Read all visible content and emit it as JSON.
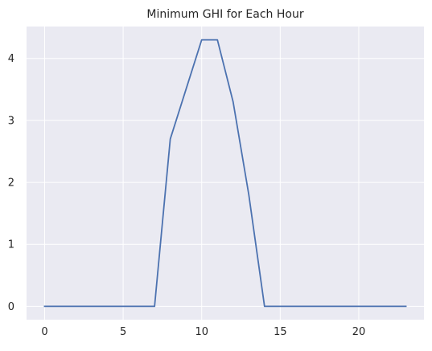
{
  "chart_data": {
    "type": "line",
    "title": "Minimum GHI for Each Hour",
    "xlabel": "",
    "ylabel": "",
    "x": [
      0,
      1,
      2,
      3,
      4,
      5,
      6,
      7,
      8,
      9,
      10,
      11,
      12,
      13,
      14,
      15,
      16,
      17,
      18,
      19,
      20,
      21,
      22,
      23
    ],
    "series": [
      {
        "values": [
          0,
          0,
          0,
          0,
          0,
          0,
          0,
          0,
          2.7,
          3.5,
          4.3,
          4.3,
          3.3,
          1.8,
          0,
          0,
          0,
          0,
          0,
          0,
          0,
          0,
          0,
          0
        ]
      }
    ],
    "xlim": [
      -1.15,
      24.15
    ],
    "ylim": [
      -0.215,
      4.515
    ],
    "xticks": [
      0,
      5,
      10,
      15,
      20
    ],
    "yticks": [
      0,
      1,
      2,
      3,
      4
    ],
    "xtick_labels": [
      "0",
      "5",
      "10",
      "15",
      "20"
    ],
    "ytick_labels": [
      "0",
      "1",
      "2",
      "3",
      "4"
    ],
    "grid": true,
    "legend": "none",
    "colors": {
      "background": "#EAEAF2",
      "grid": "#FFFFFF",
      "line": "#4C72B0",
      "text": "#262626"
    }
  }
}
